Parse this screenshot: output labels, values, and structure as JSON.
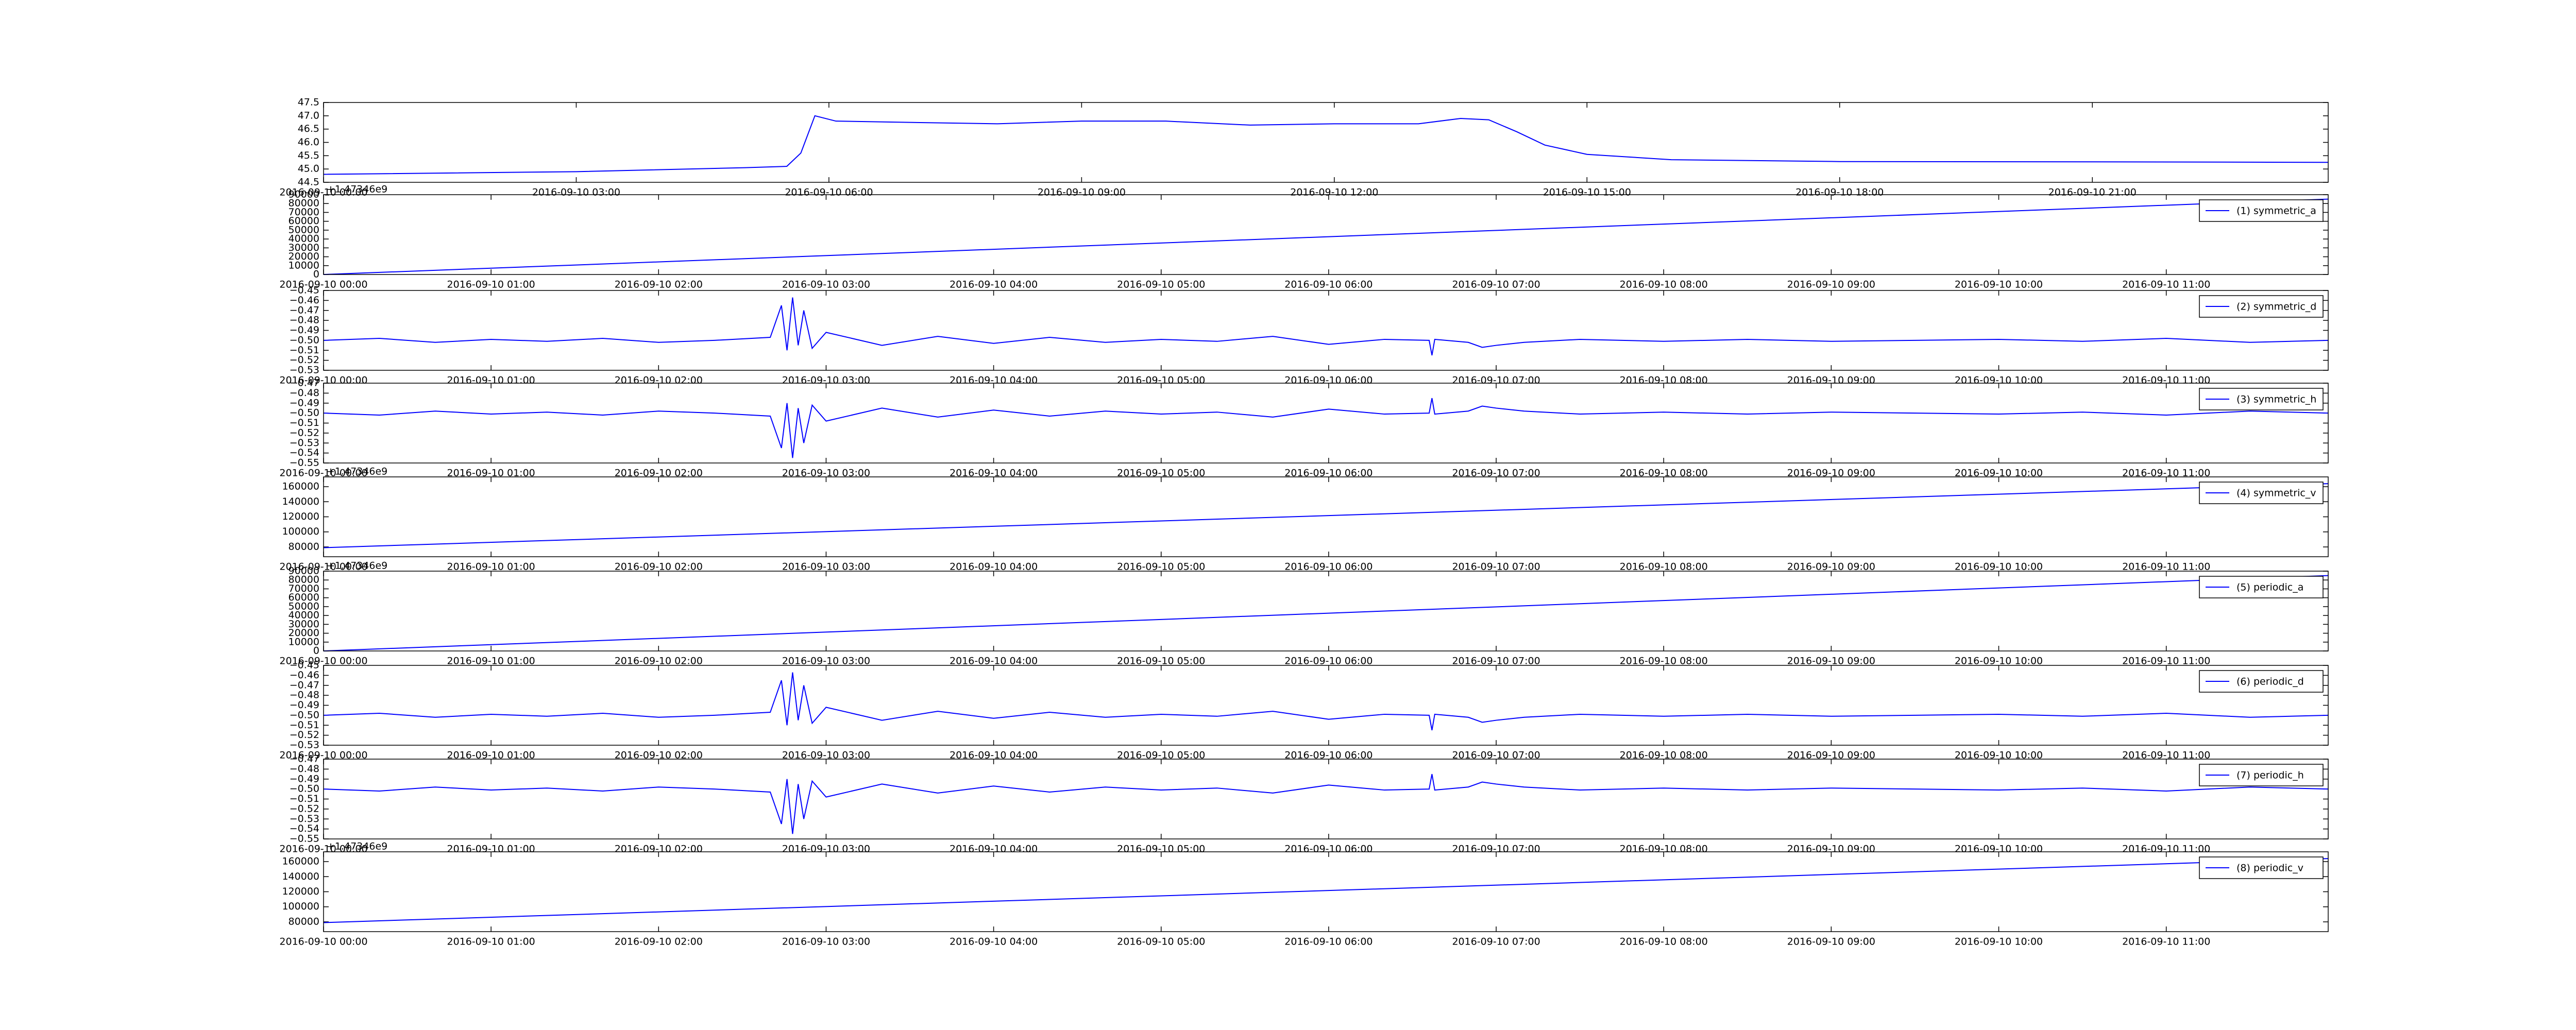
{
  "chart_data": [
    {
      "type": "line",
      "color": "#0000ff",
      "x": [
        "2016-09-10 00:00",
        "2016-09-10 03:00",
        "2016-09-10 05:00",
        "2016-09-10 05:30",
        "2016-09-10 05:40",
        "2016-09-10 05:50",
        "2016-09-10 06:05",
        "2016-09-10 07:00",
        "2016-09-10 08:00",
        "2016-09-10 09:00",
        "2016-09-10 10:00",
        "2016-09-10 11:00",
        "2016-09-10 12:00",
        "2016-09-10 13:00",
        "2016-09-10 13:30",
        "2016-09-10 13:50",
        "2016-09-10 14:10",
        "2016-09-10 14:30",
        "2016-09-10 15:00",
        "2016-09-10 16:00",
        "2016-09-10 18:00",
        "2016-09-10 21:00",
        "2016-09-10 23:48"
      ],
      "values": [
        44.8,
        44.9,
        45.05,
        45.1,
        45.6,
        47.0,
        46.8,
        46.75,
        46.7,
        46.8,
        46.8,
        46.65,
        46.7,
        46.7,
        46.9,
        46.85,
        46.4,
        45.9,
        45.55,
        45.35,
        45.28,
        45.27,
        45.25
      ],
      "xlim": [
        "2016-09-10 00:00",
        "2016-09-10 23:48"
      ],
      "xticks": [
        "2016-09-10 00:00",
        "2016-09-10 03:00",
        "2016-09-10 06:00",
        "2016-09-10 09:00",
        "2016-09-10 12:00",
        "2016-09-10 15:00",
        "2016-09-10 18:00",
        "2016-09-10 21:00"
      ],
      "ylim": [
        44.5,
        47.5
      ],
      "yticks": [
        44.5,
        {
          "value": 45,
          "label": "45.0"
        },
        45.5,
        {
          "value": 46,
          "label": "46.0"
        },
        46.5,
        {
          "value": 47,
          "label": "47.0"
        },
        47.5
      ]
    },
    {
      "type": "line",
      "offset_label": "+1.47346e9",
      "x": [
        "2016-09-10 00:00",
        "2016-09-10 11:58"
      ],
      "series": [
        {
          "name": "(1) symmetric_a",
          "color": "#0000ff",
          "values": [
            0,
            85000
          ]
        }
      ],
      "xlim": [
        "2016-09-10 00:00",
        "2016-09-10 11:58"
      ],
      "xticks": [
        "2016-09-10 00:00",
        "2016-09-10 01:00",
        "2016-09-10 02:00",
        "2016-09-10 03:00",
        "2016-09-10 04:00",
        "2016-09-10 05:00",
        "2016-09-10 06:00",
        "2016-09-10 07:00",
        "2016-09-10 08:00",
        "2016-09-10 09:00",
        "2016-09-10 10:00",
        "2016-09-10 11:00"
      ],
      "ylim": [
        0,
        90000
      ],
      "yticks": [
        0,
        10000,
        20000,
        30000,
        40000,
        50000,
        60000,
        70000,
        80000,
        90000
      ]
    },
    {
      "type": "line",
      "x": [
        "2016-09-10 00:00",
        "2016-09-10 00:20",
        "2016-09-10 00:40",
        "2016-09-10 01:00",
        "2016-09-10 01:20",
        "2016-09-10 01:40",
        "2016-09-10 02:00",
        "2016-09-10 02:20",
        "2016-09-10 02:40",
        "2016-09-10 02:44",
        "2016-09-10 02:46",
        "2016-09-10 02:48",
        "2016-09-10 02:50",
        "2016-09-10 02:52",
        "2016-09-10 02:55",
        "2016-09-10 03:00",
        "2016-09-10 03:20",
        "2016-09-10 03:40",
        "2016-09-10 04:00",
        "2016-09-10 04:20",
        "2016-09-10 04:40",
        "2016-09-10 05:00",
        "2016-09-10 05:20",
        "2016-09-10 05:40",
        "2016-09-10 06:00",
        "2016-09-10 06:20",
        "2016-09-10 06:36",
        "2016-09-10 06:37",
        "2016-09-10 06:38",
        "2016-09-10 06:50",
        "2016-09-10 06:55",
        "2016-09-10 07:00",
        "2016-09-10 07:10",
        "2016-09-10 07:30",
        "2016-09-10 08:00",
        "2016-09-10 08:30",
        "2016-09-10 09:00",
        "2016-09-10 09:30",
        "2016-09-10 10:00",
        "2016-09-10 10:30",
        "2016-09-10 11:00",
        "2016-09-10 11:30",
        "2016-09-10 11:58"
      ],
      "series": [
        {
          "name": "(2) symmetric_d",
          "color": "#0000ff",
          "values": [
            -0.5,
            -0.498,
            -0.502,
            -0.499,
            -0.501,
            -0.498,
            -0.502,
            -0.5,
            -0.497,
            -0.465,
            -0.51,
            -0.457,
            -0.505,
            -0.47,
            -0.508,
            -0.492,
            -0.505,
            -0.496,
            -0.503,
            -0.497,
            -0.502,
            -0.499,
            -0.501,
            -0.496,
            -0.504,
            -0.499,
            -0.5,
            -0.515,
            -0.499,
            -0.502,
            -0.507,
            -0.505,
            -0.502,
            -0.499,
            -0.501,
            -0.499,
            -0.501,
            -0.5,
            -0.499,
            -0.501,
            -0.498,
            -0.502,
            -0.5
          ]
        }
      ],
      "xlim": [
        "2016-09-10 00:00",
        "2016-09-10 11:58"
      ],
      "xticks": [
        "2016-09-10 00:00",
        "2016-09-10 01:00",
        "2016-09-10 02:00",
        "2016-09-10 03:00",
        "2016-09-10 04:00",
        "2016-09-10 05:00",
        "2016-09-10 06:00",
        "2016-09-10 07:00",
        "2016-09-10 08:00",
        "2016-09-10 09:00",
        "2016-09-10 10:00",
        "2016-09-10 11:00"
      ],
      "ylim": [
        -0.53,
        -0.45
      ],
      "yticks": [
        {
          "value": -0.53,
          "label": "−0.53"
        },
        {
          "value": -0.52,
          "label": "−0.52"
        },
        {
          "value": -0.51,
          "label": "−0.51"
        },
        {
          "value": -0.5,
          "label": "−0.50"
        },
        {
          "value": -0.49,
          "label": "−0.49"
        },
        {
          "value": -0.48,
          "label": "−0.48"
        },
        {
          "value": -0.47,
          "label": "−0.47"
        },
        {
          "value": -0.46,
          "label": "−0.46"
        },
        {
          "value": -0.45,
          "label": "−0.45"
        }
      ]
    },
    {
      "type": "line",
      "x": [
        "2016-09-10 00:00",
        "2016-09-10 00:20",
        "2016-09-10 00:40",
        "2016-09-10 01:00",
        "2016-09-10 01:20",
        "2016-09-10 01:40",
        "2016-09-10 02:00",
        "2016-09-10 02:20",
        "2016-09-10 02:40",
        "2016-09-10 02:44",
        "2016-09-10 02:46",
        "2016-09-10 02:48",
        "2016-09-10 02:50",
        "2016-09-10 02:52",
        "2016-09-10 02:55",
        "2016-09-10 03:00",
        "2016-09-10 03:20",
        "2016-09-10 03:40",
        "2016-09-10 04:00",
        "2016-09-10 04:20",
        "2016-09-10 04:40",
        "2016-09-10 05:00",
        "2016-09-10 05:20",
        "2016-09-10 05:40",
        "2016-09-10 06:00",
        "2016-09-10 06:20",
        "2016-09-10 06:36",
        "2016-09-10 06:37",
        "2016-09-10 06:38",
        "2016-09-10 06:50",
        "2016-09-10 06:55",
        "2016-09-10 07:00",
        "2016-09-10 07:10",
        "2016-09-10 07:30",
        "2016-09-10 08:00",
        "2016-09-10 08:30",
        "2016-09-10 09:00",
        "2016-09-10 09:30",
        "2016-09-10 10:00",
        "2016-09-10 10:30",
        "2016-09-10 11:00",
        "2016-09-10 11:30",
        "2016-09-10 11:58"
      ],
      "series": [
        {
          "name": "(3) symmetric_h",
          "color": "#0000ff",
          "values": [
            -0.5,
            -0.502,
            -0.498,
            -0.501,
            -0.499,
            -0.502,
            -0.498,
            -0.5,
            -0.503,
            -0.535,
            -0.49,
            -0.545,
            -0.495,
            -0.53,
            -0.492,
            -0.508,
            -0.495,
            -0.504,
            -0.497,
            -0.503,
            -0.498,
            -0.501,
            -0.499,
            -0.504,
            -0.496,
            -0.501,
            -0.5,
            -0.485,
            -0.501,
            -0.498,
            -0.493,
            -0.495,
            -0.498,
            -0.501,
            -0.499,
            -0.501,
            -0.499,
            -0.5,
            -0.501,
            -0.499,
            -0.502,
            -0.498,
            -0.5
          ]
        }
      ],
      "xlim": [
        "2016-09-10 00:00",
        "2016-09-10 11:58"
      ],
      "xticks": [
        "2016-09-10 00:00",
        "2016-09-10 01:00",
        "2016-09-10 02:00",
        "2016-09-10 03:00",
        "2016-09-10 04:00",
        "2016-09-10 05:00",
        "2016-09-10 06:00",
        "2016-09-10 07:00",
        "2016-09-10 08:00",
        "2016-09-10 09:00",
        "2016-09-10 10:00",
        "2016-09-10 11:00"
      ],
      "ylim": [
        -0.55,
        -0.47
      ],
      "yticks": [
        {
          "value": -0.55,
          "label": "−0.55"
        },
        {
          "value": -0.54,
          "label": "−0.54"
        },
        {
          "value": -0.53,
          "label": "−0.53"
        },
        {
          "value": -0.52,
          "label": "−0.52"
        },
        {
          "value": -0.51,
          "label": "−0.51"
        },
        {
          "value": -0.5,
          "label": "−0.50"
        },
        {
          "value": -0.49,
          "label": "−0.49"
        },
        {
          "value": -0.48,
          "label": "−0.48"
        },
        {
          "value": -0.47,
          "label": "−0.47"
        }
      ]
    },
    {
      "type": "line",
      "offset_label": "+1.47346e9",
      "x": [
        "2016-09-10 00:00",
        "2016-09-10 11:58"
      ],
      "series": [
        {
          "name": "(4) symmetric_v",
          "color": "#0000ff",
          "values": [
            79000,
            164000
          ]
        }
      ],
      "xlim": [
        "2016-09-10 00:00",
        "2016-09-10 11:58"
      ],
      "xticks": [
        "2016-09-10 00:00",
        "2016-09-10 01:00",
        "2016-09-10 02:00",
        "2016-09-10 03:00",
        "2016-09-10 04:00",
        "2016-09-10 05:00",
        "2016-09-10 06:00",
        "2016-09-10 07:00",
        "2016-09-10 08:00",
        "2016-09-10 09:00",
        "2016-09-10 10:00",
        "2016-09-10 11:00"
      ],
      "ylim": [
        67000,
        173000
      ],
      "yticks": [
        80000,
        100000,
        120000,
        140000,
        160000
      ]
    },
    {
      "type": "line",
      "offset_label": "+1.47346e9",
      "x": [
        "2016-09-10 00:00",
        "2016-09-10 11:58"
      ],
      "series": [
        {
          "name": "(5) periodic_a",
          "color": "#0000ff",
          "values": [
            0,
            85000
          ]
        }
      ],
      "xlim": [
        "2016-09-10 00:00",
        "2016-09-10 11:58"
      ],
      "xticks": [
        "2016-09-10 00:00",
        "2016-09-10 01:00",
        "2016-09-10 02:00",
        "2016-09-10 03:00",
        "2016-09-10 04:00",
        "2016-09-10 05:00",
        "2016-09-10 06:00",
        "2016-09-10 07:00",
        "2016-09-10 08:00",
        "2016-09-10 09:00",
        "2016-09-10 10:00",
        "2016-09-10 11:00"
      ],
      "ylim": [
        0,
        90000
      ],
      "yticks": [
        0,
        10000,
        20000,
        30000,
        40000,
        50000,
        60000,
        70000,
        80000,
        90000
      ]
    },
    {
      "type": "line",
      "x": [
        "2016-09-10 00:00",
        "2016-09-10 00:20",
        "2016-09-10 00:40",
        "2016-09-10 01:00",
        "2016-09-10 01:20",
        "2016-09-10 01:40",
        "2016-09-10 02:00",
        "2016-09-10 02:20",
        "2016-09-10 02:40",
        "2016-09-10 02:44",
        "2016-09-10 02:46",
        "2016-09-10 02:48",
        "2016-09-10 02:50",
        "2016-09-10 02:52",
        "2016-09-10 02:55",
        "2016-09-10 03:00",
        "2016-09-10 03:20",
        "2016-09-10 03:40",
        "2016-09-10 04:00",
        "2016-09-10 04:20",
        "2016-09-10 04:40",
        "2016-09-10 05:00",
        "2016-09-10 05:20",
        "2016-09-10 05:40",
        "2016-09-10 06:00",
        "2016-09-10 06:20",
        "2016-09-10 06:36",
        "2016-09-10 06:37",
        "2016-09-10 06:38",
        "2016-09-10 06:50",
        "2016-09-10 06:55",
        "2016-09-10 07:00",
        "2016-09-10 07:10",
        "2016-09-10 07:30",
        "2016-09-10 08:00",
        "2016-09-10 08:30",
        "2016-09-10 09:00",
        "2016-09-10 09:30",
        "2016-09-10 10:00",
        "2016-09-10 10:30",
        "2016-09-10 11:00",
        "2016-09-10 11:30",
        "2016-09-10 11:58"
      ],
      "series": [
        {
          "name": "(6) periodic_d",
          "color": "#0000ff",
          "values": [
            -0.5,
            -0.498,
            -0.502,
            -0.499,
            -0.501,
            -0.498,
            -0.502,
            -0.5,
            -0.497,
            -0.465,
            -0.51,
            -0.457,
            -0.505,
            -0.47,
            -0.508,
            -0.492,
            -0.505,
            -0.496,
            -0.503,
            -0.497,
            -0.502,
            -0.499,
            -0.501,
            -0.496,
            -0.504,
            -0.499,
            -0.5,
            -0.515,
            -0.499,
            -0.502,
            -0.507,
            -0.505,
            -0.502,
            -0.499,
            -0.501,
            -0.499,
            -0.501,
            -0.5,
            -0.499,
            -0.501,
            -0.498,
            -0.502,
            -0.5
          ]
        }
      ],
      "xlim": [
        "2016-09-10 00:00",
        "2016-09-10 11:58"
      ],
      "xticks": [
        "2016-09-10 00:00",
        "2016-09-10 01:00",
        "2016-09-10 02:00",
        "2016-09-10 03:00",
        "2016-09-10 04:00",
        "2016-09-10 05:00",
        "2016-09-10 06:00",
        "2016-09-10 07:00",
        "2016-09-10 08:00",
        "2016-09-10 09:00",
        "2016-09-10 10:00",
        "2016-09-10 11:00"
      ],
      "ylim": [
        -0.53,
        -0.45
      ],
      "yticks": [
        {
          "value": -0.53,
          "label": "−0.53"
        },
        {
          "value": -0.52,
          "label": "−0.52"
        },
        {
          "value": -0.51,
          "label": "−0.51"
        },
        {
          "value": -0.5,
          "label": "−0.50"
        },
        {
          "value": -0.49,
          "label": "−0.49"
        },
        {
          "value": -0.48,
          "label": "−0.48"
        },
        {
          "value": -0.47,
          "label": "−0.47"
        },
        {
          "value": -0.46,
          "label": "−0.46"
        },
        {
          "value": -0.45,
          "label": "−0.45"
        }
      ]
    },
    {
      "type": "line",
      "x": [
        "2016-09-10 00:00",
        "2016-09-10 00:20",
        "2016-09-10 00:40",
        "2016-09-10 01:00",
        "2016-09-10 01:20",
        "2016-09-10 01:40",
        "2016-09-10 02:00",
        "2016-09-10 02:20",
        "2016-09-10 02:40",
        "2016-09-10 02:44",
        "2016-09-10 02:46",
        "2016-09-10 02:48",
        "2016-09-10 02:50",
        "2016-09-10 02:52",
        "2016-09-10 02:55",
        "2016-09-10 03:00",
        "2016-09-10 03:20",
        "2016-09-10 03:40",
        "2016-09-10 04:00",
        "2016-09-10 04:20",
        "2016-09-10 04:40",
        "2016-09-10 05:00",
        "2016-09-10 05:20",
        "2016-09-10 05:40",
        "2016-09-10 06:00",
        "2016-09-10 06:20",
        "2016-09-10 06:36",
        "2016-09-10 06:37",
        "2016-09-10 06:38",
        "2016-09-10 06:50",
        "2016-09-10 06:55",
        "2016-09-10 07:00",
        "2016-09-10 07:10",
        "2016-09-10 07:30",
        "2016-09-10 08:00",
        "2016-09-10 08:30",
        "2016-09-10 09:00",
        "2016-09-10 09:30",
        "2016-09-10 10:00",
        "2016-09-10 10:30",
        "2016-09-10 11:00",
        "2016-09-10 11:30",
        "2016-09-10 11:58"
      ],
      "series": [
        {
          "name": "(7) periodic_h",
          "color": "#0000ff",
          "values": [
            -0.5,
            -0.502,
            -0.498,
            -0.501,
            -0.499,
            -0.502,
            -0.498,
            -0.5,
            -0.503,
            -0.535,
            -0.49,
            -0.545,
            -0.495,
            -0.53,
            -0.492,
            -0.508,
            -0.495,
            -0.504,
            -0.497,
            -0.503,
            -0.498,
            -0.501,
            -0.499,
            -0.504,
            -0.496,
            -0.501,
            -0.5,
            -0.485,
            -0.501,
            -0.498,
            -0.493,
            -0.495,
            -0.498,
            -0.501,
            -0.499,
            -0.501,
            -0.499,
            -0.5,
            -0.501,
            -0.499,
            -0.502,
            -0.498,
            -0.5
          ]
        }
      ],
      "xlim": [
        "2016-09-10 00:00",
        "2016-09-10 11:58"
      ],
      "xticks": [
        "2016-09-10 00:00",
        "2016-09-10 01:00",
        "2016-09-10 02:00",
        "2016-09-10 03:00",
        "2016-09-10 04:00",
        "2016-09-10 05:00",
        "2016-09-10 06:00",
        "2016-09-10 07:00",
        "2016-09-10 08:00",
        "2016-09-10 09:00",
        "2016-09-10 10:00",
        "2016-09-10 11:00"
      ],
      "ylim": [
        -0.55,
        -0.47
      ],
      "yticks": [
        {
          "value": -0.55,
          "label": "−0.55"
        },
        {
          "value": -0.54,
          "label": "−0.54"
        },
        {
          "value": -0.53,
          "label": "−0.53"
        },
        {
          "value": -0.52,
          "label": "−0.52"
        },
        {
          "value": -0.51,
          "label": "−0.51"
        },
        {
          "value": -0.5,
          "label": "−0.50"
        },
        {
          "value": -0.49,
          "label": "−0.49"
        },
        {
          "value": -0.48,
          "label": "−0.48"
        },
        {
          "value": -0.47,
          "label": "−0.47"
        }
      ]
    },
    {
      "type": "line",
      "offset_label": "+1.47346e9",
      "x": [
        "2016-09-10 00:00",
        "2016-09-10 11:58"
      ],
      "series": [
        {
          "name": "(8) periodic_v",
          "color": "#0000ff",
          "values": [
            79000,
            164000
          ]
        }
      ],
      "xlim": [
        "2016-09-10 00:00",
        "2016-09-10 11:58"
      ],
      "xticks": [
        "2016-09-10 00:00",
        "2016-09-10 01:00",
        "2016-09-10 02:00",
        "2016-09-10 03:00",
        "2016-09-10 04:00",
        "2016-09-10 05:00",
        "2016-09-10 06:00",
        "2016-09-10 07:00",
        "2016-09-10 08:00",
        "2016-09-10 09:00",
        "2016-09-10 10:00",
        "2016-09-10 11:00"
      ],
      "ylim": [
        67000,
        173000
      ],
      "yticks": [
        80000,
        100000,
        120000,
        140000,
        160000
      ]
    }
  ]
}
